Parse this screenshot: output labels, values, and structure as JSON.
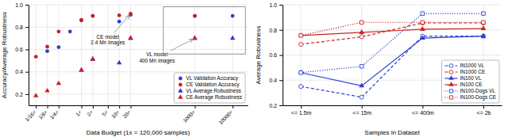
{
  "chart_data": [
    {
      "type": "scatter",
      "log": "x",
      "xlabel": "Data Budget (1x = 120,000 samples)",
      "ylabel": "Accuracy/Average Robustness",
      "xlim": [
        0.04,
        25000
      ],
      "ylim": [
        0.1,
        1.0
      ],
      "xticks": [
        {
          "value": 0.0625,
          "label": "1/16×"
        },
        {
          "value": 0.125,
          "label": "1/8×"
        },
        {
          "value": 0.25,
          "label": "1/4×"
        },
        {
          "value": 1,
          "label": "1×"
        },
        {
          "value": 2,
          "label": "2×"
        },
        {
          "value": 5,
          "label": "5×"
        },
        {
          "value": 10,
          "label": "10×"
        },
        {
          "value": 20,
          "label": "20×"
        },
        {
          "value": 1000,
          "label": "1000×"
        },
        {
          "value": 10000,
          "label": "10000×"
        }
      ],
      "yticks": [
        0.2,
        0.4,
        0.6,
        0.8,
        {
          "value": 1.0,
          "label": "1.0"
        }
      ],
      "grid": true,
      "legend": "lower right",
      "series": [
        {
          "name": "VL Validation Accuracy",
          "color": "#2a3fcc",
          "marker": "circle",
          "x": [
            0.125,
            0.25,
            0.5,
            1,
            2,
            10,
            20,
            1000,
            10000
          ],
          "values": [
            0.585,
            0.62,
            0.76,
            0.86,
            0.9,
            0.85,
            0.91,
            0.9,
            0.9
          ]
        },
        {
          "name": "CE Validation Accuracy",
          "color": "#cc2222",
          "marker": "circle",
          "x": [
            0.0625,
            0.125,
            0.25,
            1,
            2,
            10,
            20,
            1000
          ],
          "values": [
            0.535,
            0.625,
            0.76,
            0.865,
            0.9,
            0.905,
            0.92,
            0.9
          ]
        },
        {
          "name": "VL Average Robustness",
          "color": "#2a3fcc",
          "marker": "triangle",
          "x": [
            1,
            2,
            10,
            20,
            1000,
            10000
          ],
          "values": [
            0.415,
            0.515,
            0.48,
            0.7,
            0.7,
            0.7
          ]
        },
        {
          "name": "CE Average Robustness",
          "color": "#cc2222",
          "marker": "triangle",
          "x": [
            0.0625,
            0.125,
            0.25,
            1,
            2,
            10,
            20,
            1000
          ],
          "values": [
            0.185,
            0.23,
            0.295,
            0.415,
            0.51,
            0.665,
            0.7,
            0.7
          ]
        }
      ],
      "annotations": [
        {
          "text": "CE model\n2.4 Mn Images",
          "xy": [
            20,
            0.92
          ],
          "xytext": [
            5,
            0.635
          ]
        },
        {
          "text": "VL model\n400 Mn Images",
          "xy": [
            1000,
            0.7
          ],
          "xytext": [
            100,
            0.575
          ]
        }
      ]
    },
    {
      "type": "line",
      "xlabel": "Samples in Dataset",
      "ylabel": "Average Robustness",
      "categories": [
        "<= 1.5m",
        "<= 15m",
        "<= 400m",
        "<= 2b"
      ],
      "ylim": [
        0.2,
        1.0
      ],
      "yticks": [
        0.2,
        0.4,
        0.6,
        0.8,
        {
          "value": 1.0,
          "label": "1.0"
        }
      ],
      "grid": true,
      "legend": "lower right",
      "series": [
        {
          "name": "IN1000 VL",
          "color": "#2a3fcc",
          "marker": "circle-open",
          "line_style": "dashed",
          "values": [
            0.35,
            0.265,
            0.75,
            0.75
          ]
        },
        {
          "name": "IN1000 CE",
          "color": "#cc2222",
          "marker": "circle-open",
          "line_style": "dashed",
          "values": [
            0.685,
            0.745,
            0.855,
            0.855
          ]
        },
        {
          "name": "IN100 VL",
          "color": "#2a3fcc",
          "marker": "triangle",
          "line_style": "solid",
          "values": [
            0.46,
            0.355,
            0.735,
            0.75
          ]
        },
        {
          "name": "IN100 CE",
          "color": "#cc2222",
          "marker": "triangle",
          "line_style": "solid",
          "values": [
            0.755,
            0.78,
            0.805,
            0.81
          ]
        },
        {
          "name": "IN100-Dogs VL",
          "color": "#2a3fcc",
          "marker": "square-open",
          "line_style": "dotted",
          "values": [
            0.46,
            0.51,
            0.93,
            0.93
          ]
        },
        {
          "name": "IN100-Dogs CE",
          "color": "#cc2222",
          "marker": "square-open",
          "line_style": "dotted",
          "values": [
            0.755,
            0.86,
            0.86,
            0.86
          ]
        }
      ]
    }
  ]
}
